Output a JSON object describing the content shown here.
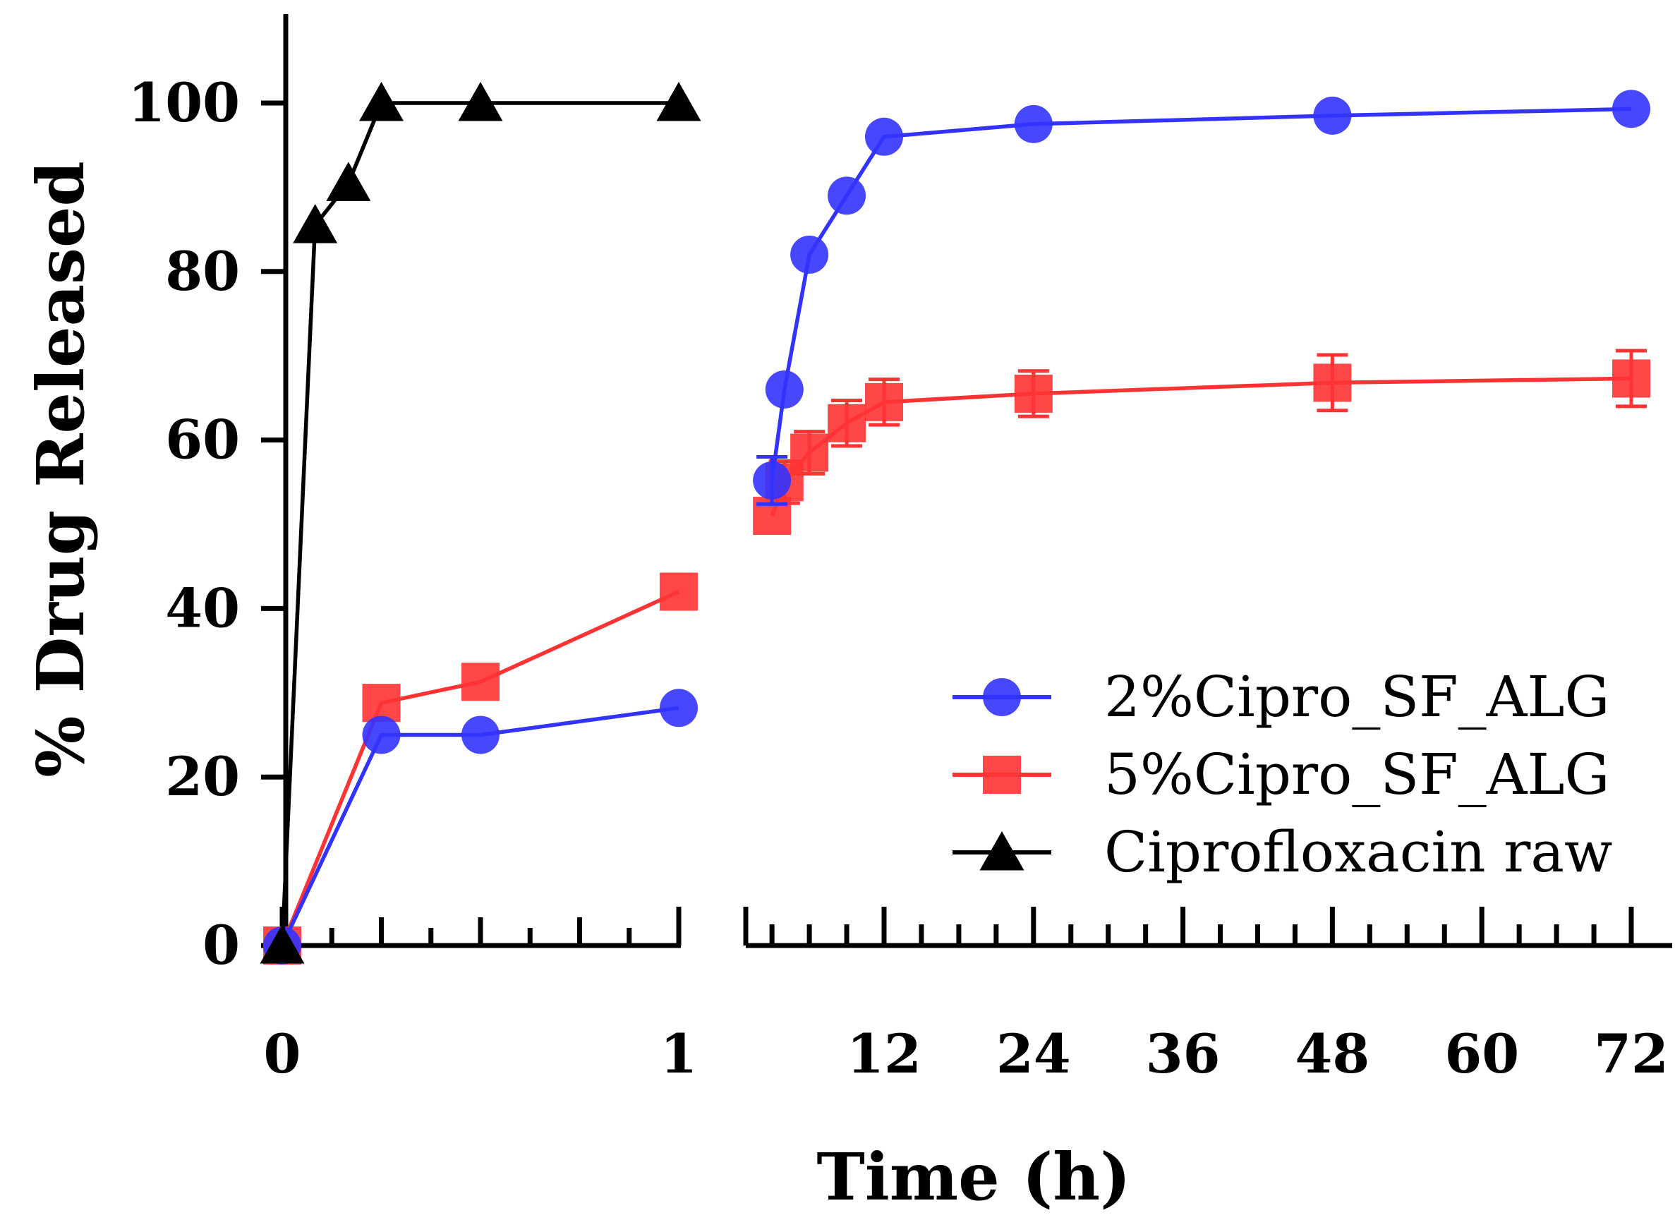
{
  "chart_data": {
    "type": "line",
    "title": "",
    "xlabel": "Time (h)",
    "ylabel": "% Drug Released",
    "ylim": [
      0,
      110
    ],
    "yticks": [
      "0",
      "20",
      "40",
      "60",
      "80",
      "100"
    ],
    "x_axis_segments": [
      {
        "name": "early",
        "range_h": [
          0,
          1
        ],
        "major_ticks": [
          "0",
          "1"
        ],
        "minor_tick_step_h": 0.125
      },
      {
        "name": "late",
        "range_h": [
          2,
          72
        ],
        "major_ticks": [
          "12",
          "24",
          "36",
          "48",
          "60",
          "72"
        ],
        "minor_tick_step_h": 3
      }
    ],
    "legend": {
      "position": "bottom-right",
      "entries": [
        "2%Cipro_SF_ALG",
        "5%Cipro_SF_ALG",
        "Ciprofloxacin raw"
      ]
    },
    "grid": false,
    "series": [
      {
        "name": "2%Cipro_SF_ALG",
        "color": "#3333ff",
        "marker": "circle",
        "points": [
          {
            "x": 0,
            "y": 0
          },
          {
            "x": 0.25,
            "y": 25
          },
          {
            "x": 0.5,
            "y": 25
          },
          {
            "x": 1,
            "y": 28.2
          },
          {
            "x": 3,
            "y": 55.2,
            "err": 2.8
          },
          {
            "x": 4,
            "y": 66
          },
          {
            "x": 6,
            "y": 82
          },
          {
            "x": 9,
            "y": 89
          },
          {
            "x": 12,
            "y": 96
          },
          {
            "x": 24,
            "y": 97.5
          },
          {
            "x": 48,
            "y": 98.5
          },
          {
            "x": 72,
            "y": 99.3
          }
        ]
      },
      {
        "name": "5%Cipro_SF_ALG",
        "color": "#ff3333",
        "marker": "square",
        "points": [
          {
            "x": 0,
            "y": 0
          },
          {
            "x": 0.25,
            "y": 28.8
          },
          {
            "x": 0.5,
            "y": 31.3
          },
          {
            "x": 1,
            "y": 42
          },
          {
            "x": 3,
            "y": 51
          },
          {
            "x": 4,
            "y": 55,
            "err": 2.5
          },
          {
            "x": 6,
            "y": 58.5,
            "err": 2.5
          },
          {
            "x": 9,
            "y": 62,
            "err": 2.7
          },
          {
            "x": 12,
            "y": 64.5,
            "err": 2.7
          },
          {
            "x": 24,
            "y": 65.5,
            "err": 2.7
          },
          {
            "x": 48,
            "y": 66.8,
            "err": 3.3
          },
          {
            "x": 72,
            "y": 67.3,
            "err": 3.3
          }
        ]
      },
      {
        "name": "Ciprofloxacin raw",
        "color": "#000000",
        "marker": "triangle",
        "points": [
          {
            "x": 0,
            "y": 0
          },
          {
            "x": 0.083,
            "y": 85.5
          },
          {
            "x": 0.167,
            "y": 90.5
          },
          {
            "x": 0.25,
            "y": 100
          },
          {
            "x": 0.5,
            "y": 100
          },
          {
            "x": 1,
            "y": 100
          }
        ]
      }
    ]
  }
}
